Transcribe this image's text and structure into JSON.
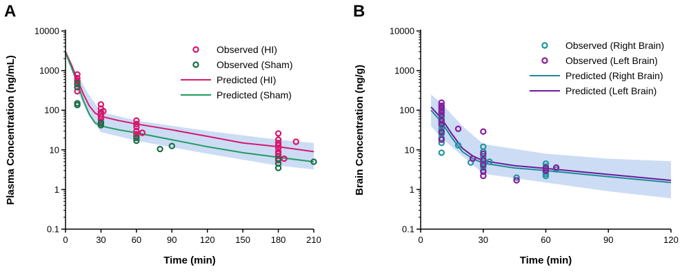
{
  "chart_data": [
    {
      "type": "scatter",
      "panel_label": "A",
      "xlabel": "Time (min)",
      "ylabel": "Plasma Concentration (ng/mL)",
      "xlim": [
        0,
        210
      ],
      "ylim_log10": [
        -1,
        4
      ],
      "x_ticks": [
        0,
        30,
        60,
        90,
        120,
        150,
        180,
        210
      ],
      "y_ticks": [
        {
          "value": 0.1,
          "label": "0.1"
        },
        {
          "value": 1,
          "label": "1"
        },
        {
          "value": 10,
          "label": "10"
        },
        {
          "value": 100,
          "label": "100"
        },
        {
          "value": 1000,
          "label": "1000"
        },
        {
          "value": 10000,
          "label": "10000"
        }
      ],
      "legend_position": "top-right",
      "prediction_interval": {
        "color": "#c6d8f3",
        "x": [
          10,
          20,
          30,
          60,
          120,
          180,
          210
        ],
        "lower": [
          300,
          70,
          28,
          17,
          8,
          4,
          3.2
        ],
        "upper": [
          800,
          240,
          90,
          55,
          30,
          18,
          15
        ]
      },
      "series": [
        {
          "name": "Observed (HI)",
          "kind": "observed",
          "color": "#d6186e",
          "points": [
            [
              10,
              800
            ],
            [
              10,
              650
            ],
            [
              10,
              550
            ],
            [
              10,
              450
            ],
            [
              10,
              380
            ],
            [
              10,
              300
            ],
            [
              30,
              140
            ],
            [
              30,
              110
            ],
            [
              30,
              90
            ],
            [
              30,
              80
            ],
            [
              30,
              70
            ],
            [
              30,
              60
            ],
            [
              30,
              50
            ],
            [
              32,
              95
            ],
            [
              60,
              55
            ],
            [
              60,
              45
            ],
            [
              60,
              38
            ],
            [
              60,
              30
            ],
            [
              60,
              25
            ],
            [
              60,
              22
            ],
            [
              65,
              27
            ],
            [
              180,
              26
            ],
            [
              180,
              18
            ],
            [
              180,
              15
            ],
            [
              180,
              13
            ],
            [
              180,
              11
            ],
            [
              180,
              9
            ],
            [
              180,
              8
            ],
            [
              180,
              7
            ],
            [
              180,
              5.5
            ],
            [
              185,
              6
            ],
            [
              195,
              16
            ]
          ]
        },
        {
          "name": "Observed (Sham)",
          "kind": "observed",
          "color": "#1a6e46",
          "points": [
            [
              10,
              480
            ],
            [
              10,
              380
            ],
            [
              10,
              150
            ],
            [
              10,
              135
            ],
            [
              30,
              48
            ],
            [
              30,
              42
            ],
            [
              60,
              20
            ],
            [
              60,
              17
            ],
            [
              80,
              10.5
            ],
            [
              90,
              12.5
            ],
            [
              180,
              6
            ],
            [
              180,
              4.5
            ],
            [
              180,
              3.5
            ],
            [
              210,
              5
            ]
          ]
        },
        {
          "name": "Predicted (HI)",
          "kind": "predicted",
          "color": "#d6186e",
          "points": [
            [
              0,
              3000
            ],
            [
              5,
              1400
            ],
            [
              10,
              600
            ],
            [
              15,
              260
            ],
            [
              20,
              130
            ],
            [
              25,
              85
            ],
            [
              30,
              70
            ],
            [
              45,
              55
            ],
            [
              60,
              45
            ],
            [
              90,
              32
            ],
            [
              120,
              22
            ],
            [
              150,
              15
            ],
            [
              180,
              12
            ],
            [
              210,
              9
            ]
          ]
        },
        {
          "name": "Predicted (Sham)",
          "kind": "predicted",
          "color": "#1f9b5d",
          "points": [
            [
              0,
              2800
            ],
            [
              5,
              1200
            ],
            [
              10,
              480
            ],
            [
              15,
              180
            ],
            [
              20,
              80
            ],
            [
              25,
              48
            ],
            [
              30,
              40
            ],
            [
              45,
              32
            ],
            [
              60,
              27
            ],
            [
              90,
              18
            ],
            [
              120,
              12
            ],
            [
              150,
              8.5
            ],
            [
              180,
              6.5
            ],
            [
              210,
              5
            ]
          ]
        }
      ]
    },
    {
      "type": "scatter",
      "panel_label": "B",
      "xlabel": "Time (min)",
      "ylabel": "Brain Concentration (ng/g)",
      "xlim": [
        0,
        120
      ],
      "ylim_log10": [
        -1,
        4
      ],
      "x_ticks": [
        0,
        30,
        60,
        90,
        120
      ],
      "y_ticks": [
        {
          "value": 0.1,
          "label": "0.1"
        },
        {
          "value": 1,
          "label": "1"
        },
        {
          "value": 10,
          "label": "10"
        },
        {
          "value": 100,
          "label": "100"
        },
        {
          "value": 1000,
          "label": "1000"
        },
        {
          "value": 10000,
          "label": "10000"
        }
      ],
      "legend_position": "top-right",
      "prediction_interval": {
        "color": "#c6d8f3",
        "x": [
          5,
          10,
          20,
          30,
          60,
          90,
          120
        ],
        "lower": [
          40,
          20,
          7,
          2.5,
          1.5,
          0.9,
          0.6
        ],
        "upper": [
          250,
          150,
          40,
          14,
          8,
          6,
          5.2
        ]
      },
      "series": [
        {
          "name": "Observed (Right Brain)",
          "kind": "observed",
          "color": "#1e94a1",
          "points": [
            [
              10,
              120
            ],
            [
              10,
              100
            ],
            [
              10,
              85
            ],
            [
              10,
              70
            ],
            [
              10,
              60
            ],
            [
              10,
              50
            ],
            [
              10,
              42
            ],
            [
              10,
              35
            ],
            [
              10,
              30
            ],
            [
              10,
              25
            ],
            [
              10,
              20
            ],
            [
              10,
              15
            ],
            [
              10,
              8.5
            ],
            [
              18,
              13
            ],
            [
              24,
              4.8
            ],
            [
              30,
              12
            ],
            [
              30,
              9
            ],
            [
              30,
              7
            ],
            [
              30,
              6
            ],
            [
              30,
              5.2
            ],
            [
              30,
              4.5
            ],
            [
              30,
              4
            ],
            [
              30,
              3.6
            ],
            [
              30,
              3
            ],
            [
              33,
              5
            ],
            [
              46,
              2
            ],
            [
              60,
              4.5
            ],
            [
              60,
              3.8
            ],
            [
              60,
              3.2
            ],
            [
              60,
              2.8
            ],
            [
              60,
              2.5
            ],
            [
              60,
              2.2
            ],
            [
              65,
              3.2
            ]
          ]
        },
        {
          "name": "Observed (Left Brain)",
          "kind": "observed",
          "color": "#8b1a9c",
          "points": [
            [
              10,
              155
            ],
            [
              10,
              130
            ],
            [
              10,
              110
            ],
            [
              10,
              90
            ],
            [
              10,
              75
            ],
            [
              10,
              55
            ],
            [
              10,
              45
            ],
            [
              10,
              28
            ],
            [
              10,
              18
            ],
            [
              18,
              34
            ],
            [
              25,
              6
            ],
            [
              30,
              29
            ],
            [
              30,
              8
            ],
            [
              30,
              5.5
            ],
            [
              30,
              4.2
            ],
            [
              30,
              2.8
            ],
            [
              30,
              2.2
            ],
            [
              46,
              1.7
            ],
            [
              60,
              3.5
            ],
            [
              60,
              3
            ],
            [
              65,
              3.6
            ]
          ]
        },
        {
          "name": "Predicted (Right Brain)",
          "kind": "predicted",
          "color": "#1e8a96",
          "points": [
            [
              5,
              100
            ],
            [
              10,
              50
            ],
            [
              15,
              20
            ],
            [
              20,
              9
            ],
            [
              25,
              6
            ],
            [
              30,
              4.6
            ],
            [
              45,
              3.5
            ],
            [
              60,
              3
            ],
            [
              90,
              2.1
            ],
            [
              120,
              1.5
            ]
          ]
        },
        {
          "name": "Predicted (Left Brain)",
          "kind": "predicted",
          "color": "#6a1a9e",
          "points": [
            [
              5,
              120
            ],
            [
              10,
              62
            ],
            [
              15,
              25
            ],
            [
              20,
              11
            ],
            [
              25,
              7
            ],
            [
              30,
              5.3
            ],
            [
              45,
              4
            ],
            [
              60,
              3.4
            ],
            [
              90,
              2.4
            ],
            [
              120,
              1.7
            ]
          ]
        }
      ]
    }
  ]
}
